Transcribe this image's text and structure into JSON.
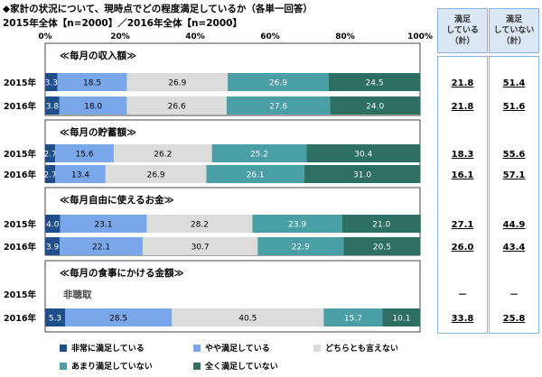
{
  "header": {
    "title": "◆家計の状況について、現時点でどの程度満足しているか（各単一回答）",
    "subtitle": "2015年全体【n=2000】／2016年全体【n=2000】"
  },
  "summary_headers": {
    "satisfied": [
      "満足",
      "している",
      "（計）"
    ],
    "unsatisfied": [
      "満足",
      "していない",
      "（計）"
    ]
  },
  "colors": {
    "非常に満足している": "#1f4e8c",
    "やや満足している": "#79a7ea",
    "どちらとも言えない": "#dcdcdc",
    "あまり満足していない": "#4a9fa6",
    "全く満足していない": "#2e6f63"
  },
  "chart_data": {
    "type": "bar",
    "orientation": "horizontal",
    "stacked": true,
    "xlim": [
      0,
      100
    ],
    "xticks": [
      "0%",
      "20%",
      "40%",
      "60%",
      "80%",
      "100%"
    ],
    "legend_position": "bottom",
    "series_names": [
      "非常に満足している",
      "やや満足している",
      "どちらとも言えない",
      "あまり満足していない",
      "全く満足していない"
    ],
    "groups": [
      {
        "title": "≪毎月の収入額≫",
        "rows": [
          {
            "year": "2015年",
            "values": [
              3.3,
              18.5,
              26.9,
              26.9,
              24.5
            ],
            "satisfied": "21.8",
            "unsatisfied": "51.4"
          },
          {
            "year": "2016年",
            "values": [
              3.8,
              18.0,
              26.6,
              27.6,
              24.0
            ],
            "satisfied": "21.8",
            "unsatisfied": "51.6"
          }
        ]
      },
      {
        "title": "≪毎月の貯蓄額≫",
        "rows": [
          {
            "year": "2015年",
            "values": [
              2.7,
              15.6,
              26.2,
              25.2,
              30.4
            ],
            "satisfied": "18.3",
            "unsatisfied": "55.6"
          },
          {
            "year": "2016年",
            "values": [
              2.7,
              13.4,
              26.9,
              26.1,
              31.0
            ],
            "satisfied": "16.1",
            "unsatisfied": "57.1"
          }
        ]
      },
      {
        "title": "≪毎月自由に使えるお金≫",
        "rows": [
          {
            "year": "2015年",
            "values": [
              4.0,
              23.1,
              28.2,
              23.9,
              21.0
            ],
            "satisfied": "27.1",
            "unsatisfied": "44.9"
          },
          {
            "year": "2016年",
            "values": [
              3.9,
              22.1,
              30.7,
              22.9,
              20.5
            ],
            "satisfied": "26.0",
            "unsatisfied": "43.4"
          }
        ]
      },
      {
        "title": "≪毎月の食事にかける金額≫",
        "rows": [
          {
            "year": "2015年",
            "values": null,
            "note": "非聴取",
            "satisfied": "－",
            "unsatisfied": "－"
          },
          {
            "year": "2016年",
            "values": [
              5.3,
              28.5,
              40.5,
              15.7,
              10.1
            ],
            "satisfied": "33.8",
            "unsatisfied": "25.8"
          }
        ]
      }
    ]
  }
}
